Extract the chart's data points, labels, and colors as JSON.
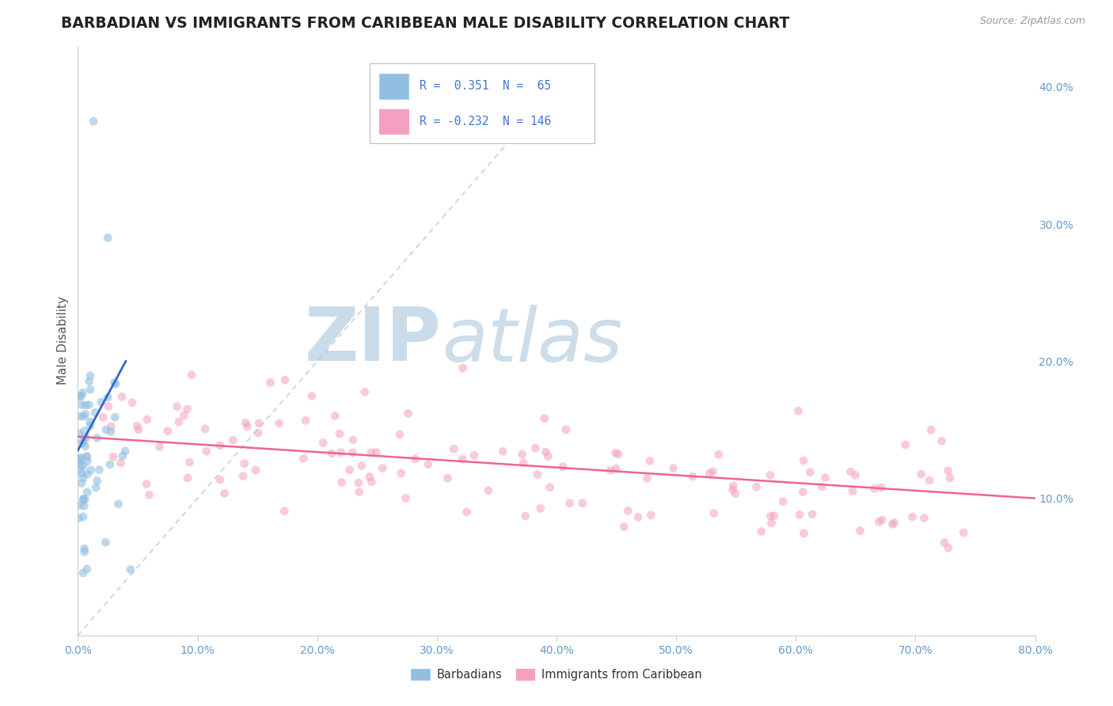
{
  "title": "BARBADIAN VS IMMIGRANTS FROM CARIBBEAN MALE DISABILITY CORRELATION CHART",
  "source": "Source: ZipAtlas.com",
  "ylabel": "Male Disability",
  "r_barbadian": 0.351,
  "n_barbadian": 65,
  "r_caribbean": -0.232,
  "n_caribbean": 146,
  "color_barbadian": "#90bfe0",
  "color_caribbean": "#f4a0c0",
  "color_barbadian_line": "#3366cc",
  "color_caribbean_line": "#ee6688",
  "color_diagonal": "#aabbdd",
  "xlim": [
    0.0,
    0.8
  ],
  "ylim": [
    0.0,
    0.43
  ],
  "yticks": [
    0.1,
    0.2,
    0.3,
    0.4
  ],
  "ytick_labels": [
    "10.0%",
    "20.0%",
    "30.0%",
    "40.0%"
  ],
  "xticks": [
    0.0,
    0.1,
    0.2,
    0.3,
    0.4,
    0.5,
    0.6,
    0.7,
    0.8
  ],
  "xtick_labels": [
    "0.0%",
    "10.0%",
    "20.0%",
    "30.0%",
    "40.0%",
    "50.0%",
    "60.0%",
    "70.0%",
    "80.0%"
  ],
  "background_color": "#ffffff",
  "grid_color": "#dddddd",
  "title_color": "#222222",
  "tick_color": "#6699cc",
  "watermark_color": "#ccdded",
  "legend_text_color": "#4477cc",
  "legend_label_color": "#222222"
}
